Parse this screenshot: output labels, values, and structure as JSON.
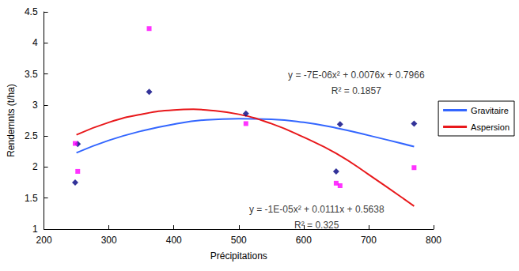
{
  "chart_data": {
    "type": "scatter",
    "x_label": "Précipitations",
    "y_label": "Rendemnts (t/ha)",
    "xlim": [
      200,
      800
    ],
    "xticks": [
      200,
      300,
      400,
      500,
      600,
      700,
      800
    ],
    "ylim": [
      1,
      4.5
    ],
    "yticks": [
      1,
      1.5,
      2,
      2.5,
      3,
      3.5,
      4,
      4.5
    ],
    "grid": false,
    "legend": "right",
    "series": [
      {
        "name": "Gravitaire",
        "marker": "diamond",
        "color": "#000080",
        "x": [
          248,
          252,
          362,
          511,
          650,
          656,
          770
        ],
        "values": [
          1.75,
          2.37,
          3.21,
          2.86,
          1.93,
          2.69,
          2.7
        ],
        "trend": {
          "color": "#3366ff",
          "line_style": "solid",
          "x": [
            250,
            300,
            350,
            400,
            450,
            500,
            550,
            600,
            650,
            700,
            770
          ],
          "values": [
            2.23,
            2.43,
            2.58,
            2.69,
            2.76,
            2.78,
            2.77,
            2.72,
            2.63,
            2.51,
            2.33
          ]
        }
      },
      {
        "name": "Aspersion",
        "marker": "square",
        "color": "#ff00ff",
        "x": [
          248,
          252,
          362,
          511,
          650,
          656,
          770
        ],
        "values": [
          2.38,
          1.93,
          4.23,
          2.7,
          1.74,
          1.7,
          1.99
        ],
        "trend": {
          "color": "#e8181b",
          "line_style": "solid",
          "x": [
            250,
            300,
            350,
            400,
            430,
            450,
            500,
            550,
            600,
            650,
            700,
            770
          ],
          "values": [
            2.52,
            2.72,
            2.85,
            2.92,
            2.93,
            2.92,
            2.85,
            2.7,
            2.48,
            2.22,
            1.88,
            1.37
          ]
        }
      }
    ],
    "annotations": [
      {
        "text": "y = -7E-06x² + 0.0076x + 0.7966\nR² = 0.1857",
        "x": 681,
        "y": 3.35
      },
      {
        "text": "y = -1E-05x² + 0.0111x + 0.5638\nR² = 0.325",
        "x": 620,
        "y": 1.19
      }
    ]
  }
}
